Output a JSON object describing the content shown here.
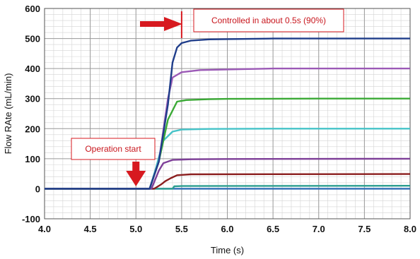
{
  "chart_data": {
    "type": "line",
    "title": "",
    "xlabel": "Time (s)",
    "ylabel": "Flow RAte (mL/min)",
    "xlim": [
      4.0,
      8.0
    ],
    "ylim": [
      -100,
      600
    ],
    "x_ticks": [
      4.0,
      4.5,
      5.0,
      5.5,
      6.0,
      6.5,
      7.0,
      7.5,
      8.0
    ],
    "x_tick_labels": [
      "4.0",
      "4.5",
      "5.0",
      "5.5",
      "6.0",
      "6.5",
      "7.0",
      "7.5",
      "8.0"
    ],
    "y_ticks": [
      -100,
      0,
      100,
      200,
      300,
      400,
      500,
      600
    ],
    "y_tick_labels": [
      "-100",
      "0",
      "100",
      "200",
      "300",
      "400",
      "500",
      "600"
    ],
    "grid": true,
    "series": [
      {
        "color": "#1f3d8a",
        "x": [
          4.0,
          5.15,
          5.25,
          5.35,
          5.4,
          5.45,
          5.5,
          5.6,
          5.8,
          6.0,
          6.5,
          7.0,
          8.0
        ],
        "y": [
          0,
          0,
          90,
          280,
          420,
          470,
          485,
          493,
          497,
          498,
          500,
          500,
          500
        ]
      },
      {
        "color": "#9b59b6",
        "x": [
          4.0,
          5.15,
          5.25,
          5.35,
          5.4,
          5.5,
          5.7,
          6.0,
          6.5,
          7.0,
          8.0
        ],
        "y": [
          0,
          0,
          90,
          300,
          370,
          388,
          395,
          397,
          400,
          400,
          400
        ]
      },
      {
        "color": "#3aa935",
        "x": [
          4.0,
          5.15,
          5.25,
          5.35,
          5.45,
          5.55,
          5.8,
          6.0,
          7.0,
          8.0
        ],
        "y": [
          0,
          0,
          90,
          230,
          290,
          295,
          298,
          299,
          300,
          300
        ]
      },
      {
        "color": "#45c3c8",
        "x": [
          4.0,
          5.15,
          5.22,
          5.3,
          5.4,
          5.5,
          5.8,
          6.5,
          8.0
        ],
        "y": [
          0,
          0,
          70,
          160,
          190,
          197,
          199,
          200,
          200
        ]
      },
      {
        "color": "#7e3f98",
        "x": [
          4.0,
          5.17,
          5.25,
          5.3,
          5.4,
          5.6,
          6.0,
          8.0
        ],
        "y": [
          0,
          0,
          60,
          85,
          96,
          98,
          99,
          100
        ]
      },
      {
        "color": "#8b1e1e",
        "x": [
          4.0,
          5.2,
          5.28,
          5.32,
          5.38,
          5.45,
          5.6,
          8.0
        ],
        "y": [
          0,
          0,
          15,
          25,
          35,
          45,
          48,
          49
        ]
      },
      {
        "color": "#2a9d8f",
        "x": [
          4.0,
          5.4,
          5.42,
          5.5,
          8.0
        ],
        "y": [
          0,
          0,
          8,
          9,
          10
        ]
      },
      {
        "color": "#2e6db5",
        "x": [
          4.0,
          8.0
        ],
        "y": [
          0,
          0
        ]
      }
    ],
    "annotations": [
      {
        "text": "Controlled in about 0.5s (90%)",
        "color": "#c8161d",
        "x": 5.5,
        "arrow": "right"
      },
      {
        "text": "Operation start",
        "color": "#c8161d",
        "x": 5.0,
        "arrow": "down"
      }
    ]
  }
}
